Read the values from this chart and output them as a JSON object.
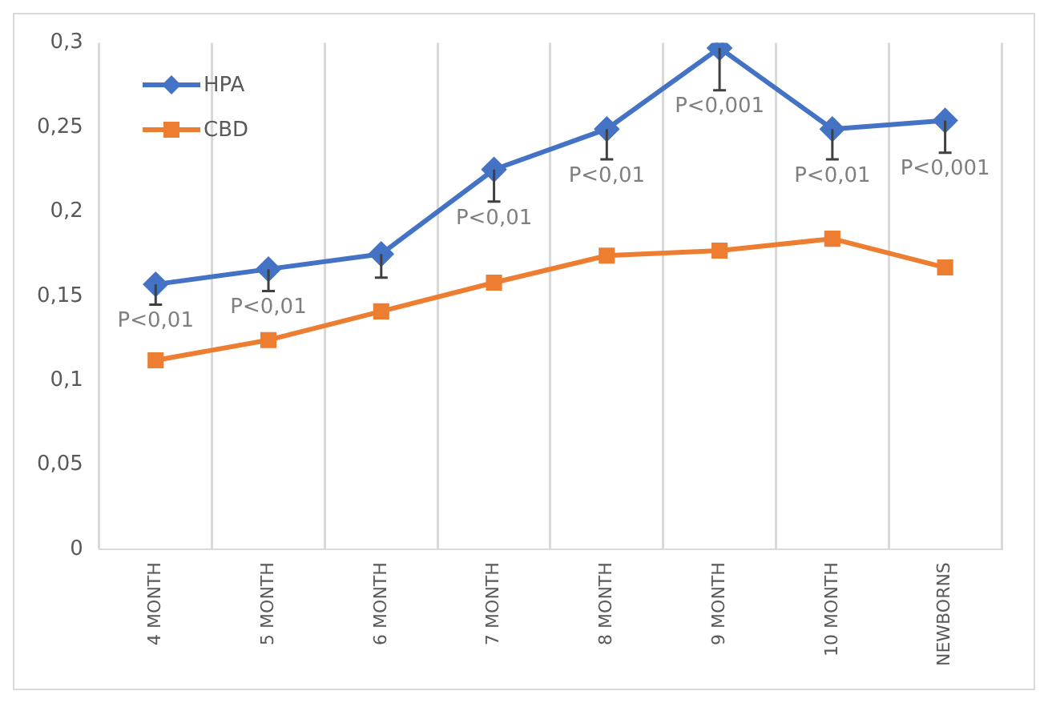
{
  "chart_data": {
    "type": "line",
    "categories": [
      "4 MONTH",
      "5 MONTH",
      "6 MONTH",
      "7 MONTH",
      "8 MONTH",
      "9 MONTH",
      "10 MONTH",
      "NEWBORNS"
    ],
    "series": [
      {
        "name": "HPA",
        "color": "#4472c4",
        "marker": "diamond",
        "values": [
          0.157,
          0.166,
          0.175,
          0.225,
          0.249,
          0.297,
          0.249,
          0.254
        ],
        "errors": [
          [
            0.145,
            0.157
          ],
          [
            0.153,
            0.166
          ],
          [
            0.161,
            0.175
          ],
          [
            0.206,
            0.225
          ],
          [
            0.231,
            0.249
          ],
          [
            0.272,
            0.297
          ],
          [
            0.231,
            0.249
          ],
          [
            0.235,
            0.254
          ]
        ]
      },
      {
        "name": "CBD",
        "color": "#ed7d31",
        "marker": "square",
        "values": [
          0.112,
          0.124,
          0.141,
          0.158,
          0.174,
          0.177,
          0.184,
          0.167
        ]
      }
    ],
    "ylim": [
      0,
      0.3
    ],
    "yticks": [
      {
        "value": 0,
        "label": "0"
      },
      {
        "value": 0.05,
        "label": "0,05"
      },
      {
        "value": 0.1,
        "label": "0,1"
      },
      {
        "value": 0.15,
        "label": "0,15"
      },
      {
        "value": 0.2,
        "label": "0,2"
      },
      {
        "value": 0.25,
        "label": "0,25"
      },
      {
        "value": 0.3,
        "label": "0,3"
      }
    ],
    "grid": "x",
    "legend": "top left",
    "line_style": "solid",
    "annotations": [
      {
        "text": "P<0,01",
        "x": "4 MONTH",
        "y": 0.157
      },
      {
        "text": "P<0,01",
        "x": "5 MONTH",
        "y": 0.166
      },
      {
        "text": "P<0,01",
        "x": "7 MONTH",
        "y": 0.225
      },
      {
        "text": "P<0,01",
        "x": "8 MONTH",
        "y": 0.249
      },
      {
        "text": "P<0,001",
        "x": "9 MONTH",
        "y": 0.297
      },
      {
        "text": "P<0,01",
        "x": "10 MONTH",
        "y": 0.249
      },
      {
        "text": "P<0,001",
        "x": "NEWBORNS",
        "y": 0.254
      }
    ]
  }
}
